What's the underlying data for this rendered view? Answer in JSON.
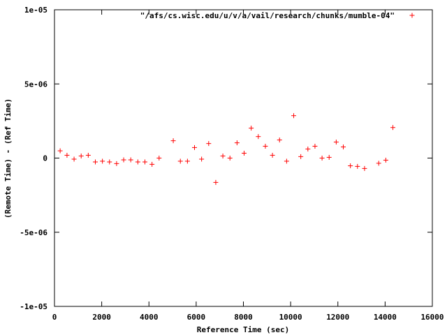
{
  "chart_data": {
    "type": "scatter",
    "xlabel": "Reference Time (sec)",
    "ylabel": "(Remote Time) - (Ref Time)",
    "xlim": [
      0,
      16000
    ],
    "ylim": [
      -1e-05,
      1e-05
    ],
    "x_ticks": [
      0,
      2000,
      4000,
      6000,
      8000,
      10000,
      12000,
      14000,
      16000
    ],
    "x_tick_labels": [
      "0",
      "2000",
      "4000",
      "6000",
      "8000",
      "10000",
      "12000",
      "14000",
      "16000"
    ],
    "y_ticks": [
      -1e-05,
      -5e-06,
      0,
      5e-06,
      1e-05
    ],
    "y_tick_labels": [
      "-1e-05",
      "-5e-06",
      "0",
      "5e-06",
      "1e-05"
    ],
    "grid": false,
    "legend_position": "top-right",
    "marker": "plus",
    "series": [
      {
        "name": "\"/afs/cs.wisc.edu/u/v/a/vail/research/chunks/mumble-04\"",
        "color": "#ff0000",
        "x": [
          240,
          530,
          830,
          1130,
          1430,
          1730,
          2030,
          2330,
          2630,
          2930,
          3230,
          3530,
          3830,
          4130,
          4430,
          5030,
          5330,
          5630,
          5930,
          6230,
          6530,
          6830,
          7130,
          7430,
          7730,
          8030,
          8330,
          8630,
          8930,
          9230,
          9530,
          9830,
          10130,
          10430,
          10730,
          11030,
          11330,
          11630,
          11930,
          12230,
          12530,
          12830,
          13130,
          13730,
          14030,
          14330
        ],
        "y": [
          4.9e-07,
          1.9e-07,
          -7e-08,
          1.4e-07,
          1.9e-07,
          -2.6e-07,
          -2.1e-07,
          -2.6e-07,
          -3.7e-07,
          -1.2e-07,
          -1.2e-07,
          -2.6e-07,
          -2.6e-07,
          -4.2e-07,
          0,
          1.17e-06,
          -2.1e-07,
          -2.1e-07,
          7.1e-07,
          -7e-08,
          9.8e-07,
          -1.64e-06,
          1.4e-07,
          0,
          1.03e-06,
          3.3e-07,
          2.02e-06,
          1.45e-06,
          8e-07,
          1.9e-07,
          1.22e-06,
          -2.1e-07,
          2.86e-06,
          1e-07,
          6.1e-07,
          8e-07,
          0,
          5e-08,
          1.08e-06,
          7.5e-07,
          -5.2e-07,
          -5.6e-07,
          -7e-07,
          -3.5e-07,
          -1.4e-07,
          2.06e-06
        ]
      }
    ]
  }
}
